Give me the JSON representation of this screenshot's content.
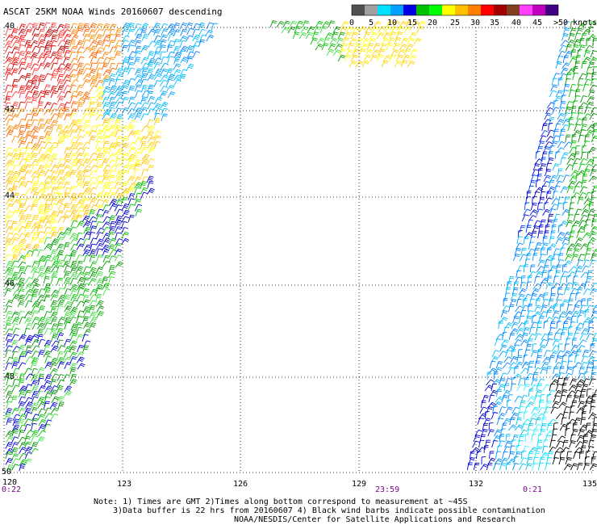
{
  "title": "ASCAT 25KM NOAA Winds 20160607 descending",
  "legend": {
    "colors": [
      "#505050",
      "#a0a0a0",
      "#00e0ff",
      "#00a0ff",
      "#0000e0",
      "#00c000",
      "#00ff00",
      "#ffff00",
      "#ffc000",
      "#ff8000",
      "#ff0000",
      "#a00000",
      "#804020",
      "#ff40ff",
      "#c000c0",
      "#400080"
    ],
    "labels": [
      "0",
      "5",
      "10",
      "15",
      "20",
      "25",
      "30",
      "35",
      "40",
      "45",
      ">50 knots"
    ],
    "label_colors_note": "label ticks"
  },
  "lat_labels": [
    "40",
    "42",
    "44",
    "46",
    "48",
    "50"
  ],
  "lon_labels": [
    "120",
    "123",
    "126",
    "129",
    "132",
    "135"
  ],
  "time_labels": [
    "0:22",
    "23:59",
    "0:21"
  ],
  "notes": {
    "line1": "Note: 1) Times are GMT 2)Times along bottom correspond to measurement at ~45S",
    "line2": "3)Data buffer is 22 hrs from 20160607 4) Black wind barbs indicate possible contamination",
    "line3": "NOAA/NESDIS/Center for Satellite Applications and Research"
  }
}
